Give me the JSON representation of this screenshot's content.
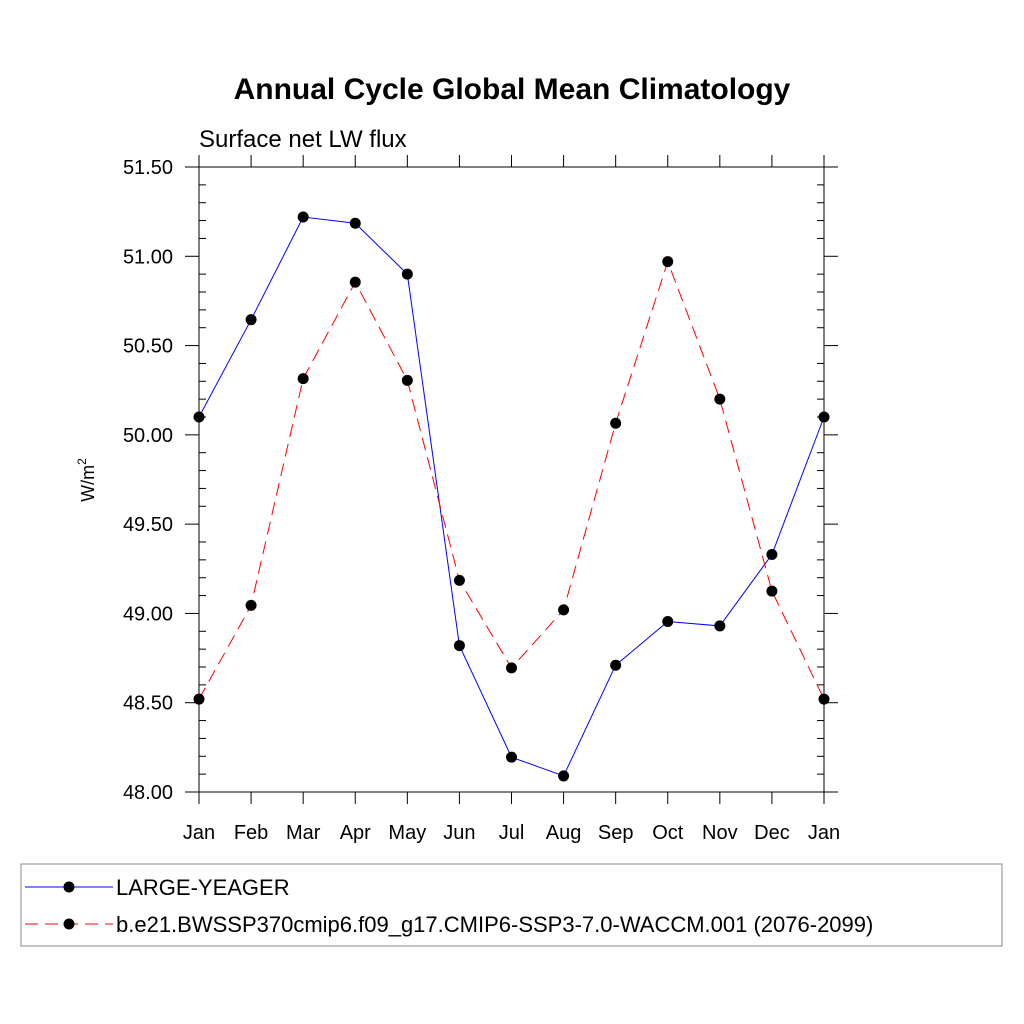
{
  "chart_data": {
    "type": "line",
    "title": "Annual Cycle Global Mean Climatology",
    "subtitle": "Surface net LW flux",
    "ylabel": "W/m",
    "ylabel_superscript": "2",
    "xlabel": "",
    "categories": [
      "Jan",
      "Feb",
      "Mar",
      "Apr",
      "May",
      "Jun",
      "Jul",
      "Aug",
      "Sep",
      "Oct",
      "Nov",
      "Dec",
      "Jan"
    ],
    "ylim": [
      48.0,
      51.5
    ],
    "yticks": [
      "48.00",
      "48.50",
      "49.00",
      "49.50",
      "50.00",
      "50.50",
      "51.00",
      "51.50"
    ],
    "grid": false,
    "legend_position": "bottom",
    "series": [
      {
        "name": "LARGE-YEAGER",
        "color": "#0000ff",
        "dash": "solid",
        "values": [
          50.1,
          50.645,
          51.22,
          51.185,
          50.9,
          48.82,
          48.195,
          48.09,
          48.71,
          48.955,
          48.93,
          49.33,
          50.1
        ]
      },
      {
        "name": "b.e21.BWSSP370cmip6.f09_g17.CMIP6-SSP3-7.0-WACCM.001 (2076-2099)",
        "color": "#ff0000",
        "dash": "dashed",
        "values": [
          48.52,
          49.045,
          50.315,
          50.855,
          50.305,
          49.185,
          48.695,
          49.02,
          50.065,
          50.97,
          50.2,
          49.125,
          48.52
        ]
      }
    ]
  }
}
